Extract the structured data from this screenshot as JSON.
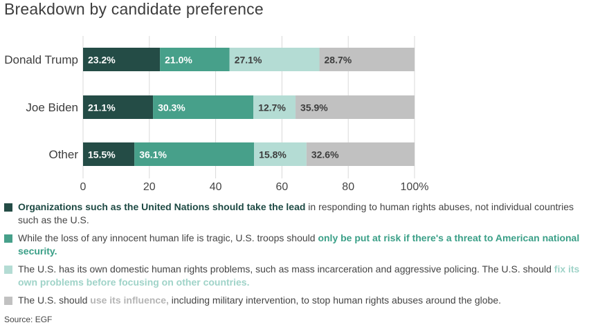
{
  "title": "Breakdown by candidate preference",
  "chart_data": {
    "type": "bar",
    "orientation": "horizontal",
    "stacked": true,
    "categories": [
      "Donald Trump",
      "Joe Biden",
      "Other"
    ],
    "series": [
      {
        "color": "#244c46",
        "values": [
          23.2,
          21.1,
          15.5
        ]
      },
      {
        "color": "#47a08a",
        "values": [
          21.0,
          30.3,
          36.1
        ]
      },
      {
        "color": "#b4dcd4",
        "values": [
          27.1,
          12.7,
          15.8
        ]
      },
      {
        "color": "#c1c1c1",
        "values": [
          28.7,
          35.9,
          32.6
        ]
      }
    ],
    "value_labels": [
      [
        "23.2%",
        "21.0%",
        "27.1%",
        "28.7%"
      ],
      [
        "21.1%",
        "30.3%",
        "12.7%",
        "35.9%"
      ],
      [
        "15.5%",
        "36.1%",
        "15.8%",
        "32.6%"
      ]
    ],
    "xlim": [
      0,
      100
    ],
    "xticks": [
      "0",
      "20",
      "40",
      "60",
      "80",
      "100%"
    ],
    "grid": true,
    "legend_position": "bottom"
  },
  "legend": [
    {
      "pre": "",
      "highlight": "Organizations such as the United Nations should take the lead",
      "post": " in responding to human rights abuses, not individual countries such as the U.S."
    },
    {
      "pre": "While the loss of any innocent human life is tragic, U.S. troops should ",
      "highlight": "only be put at risk if there's a threat to American national security.",
      "post": ""
    },
    {
      "pre": "The U.S. has its own domestic human rights problems, such as mass incarceration and aggressive policing. The U.S. should ",
      "highlight": "fix its own problems before focusing on other countries.",
      "post": ""
    },
    {
      "pre": "The U.S. should ",
      "highlight": "use its influence,",
      "post": " including military intervention, to stop human rights abuses around the globe."
    }
  ],
  "source": "Source: EGF"
}
